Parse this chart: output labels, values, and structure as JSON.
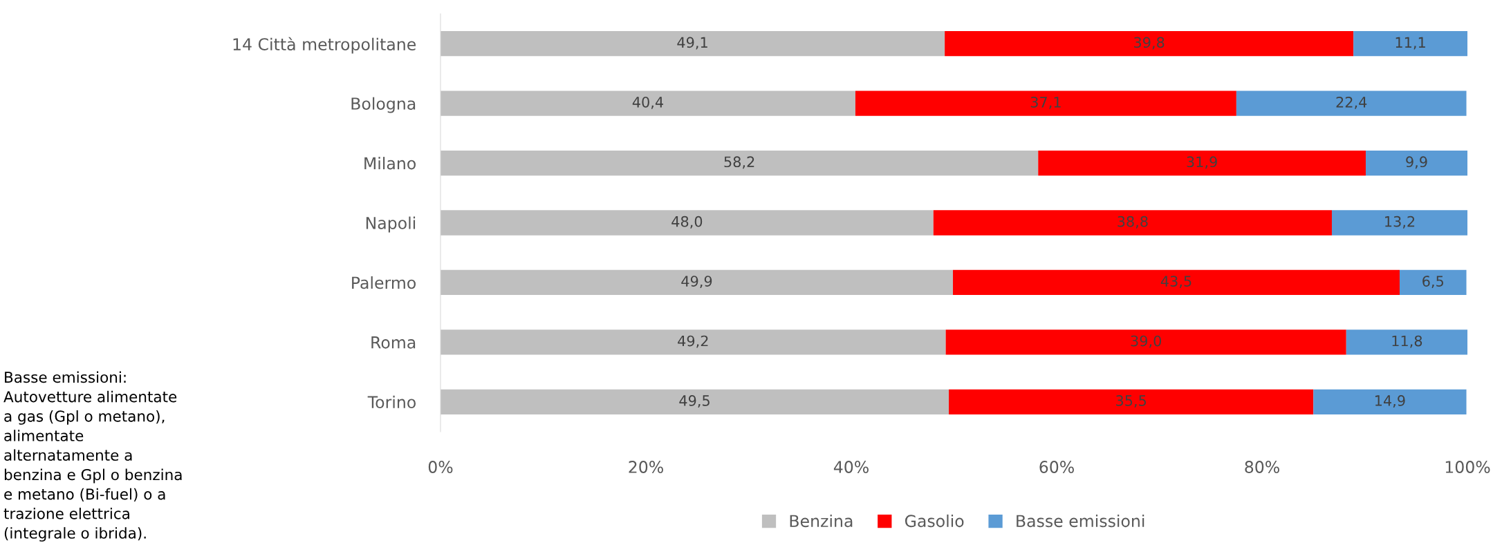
{
  "chart_data": {
    "type": "bar",
    "orientation": "horizontal",
    "stacked": true,
    "categories": [
      "14 Città metropolitane",
      "Bologna",
      "Milano",
      "Napoli",
      "Palermo",
      "Roma",
      "Torino"
    ],
    "series": [
      {
        "name": "Benzina",
        "color": "#bfbfbf",
        "values": [
          49.1,
          40.4,
          58.2,
          48.0,
          49.9,
          49.2,
          49.5
        ],
        "value_labels": [
          "49,1",
          "40,4",
          "58,2",
          "48,0",
          "49,9",
          "49,2",
          "49,5"
        ]
      },
      {
        "name": "Gasolio",
        "color": "#ff0000",
        "values": [
          39.8,
          37.1,
          31.9,
          38.8,
          43.5,
          39.0,
          35.5
        ],
        "value_labels": [
          "39,8",
          "37,1",
          "31,9",
          "38,8",
          "43,5",
          "39,0",
          "35,5"
        ]
      },
      {
        "name": "Basse emissioni",
        "color": "#5b9bd5",
        "values": [
          11.1,
          22.4,
          9.9,
          13.2,
          6.5,
          11.8,
          14.9
        ],
        "value_labels": [
          "11,1",
          "22,4",
          "9,9",
          "13,2",
          "6,5",
          "11,8",
          "14,9"
        ]
      }
    ],
    "xlim": [
      0,
      100
    ],
    "xticks": [
      {
        "value": 0,
        "label": "0%"
      },
      {
        "value": 20,
        "label": "20%"
      },
      {
        "value": 40,
        "label": "40%"
      },
      {
        "value": 60,
        "label": "60%"
      },
      {
        "value": 80,
        "label": "80%"
      },
      {
        "value": 100,
        "label": "100%"
      }
    ],
    "grid": false,
    "legend": "bottom",
    "annotations": [
      "Basse emissioni:\nAutovetture alimentate\na gas (Gpl o metano),\nalimentate\nalternatamente a\nbenzina e Gpl o benzina\ne metano (Bi-fuel) o a\ntrazione elettrica\n(integrale o ibrida)."
    ]
  }
}
